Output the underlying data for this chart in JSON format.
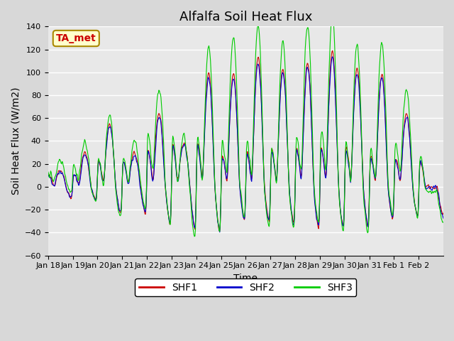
{
  "title": "Alfalfa Soil Heat Flux",
  "xlabel": "Time",
  "ylabel": "Soil Heat Flux (W/m2)",
  "ylim": [
    -60,
    140
  ],
  "yticks": [
    -60,
    -40,
    -20,
    0,
    20,
    40,
    60,
    80,
    100,
    120,
    140
  ],
  "xtick_labels": [
    "Jan 18",
    "Jan 19",
    "Jan 20",
    "Jan 21",
    "Jan 22",
    "Jan 23",
    "Jan 24",
    "Jan 25",
    "Jan 26",
    "Jan 27",
    "Jan 28",
    "Jan 29",
    "Jan 30",
    "Jan 31",
    "Feb 1",
    "Feb 2"
  ],
  "legend_labels": [
    "SHF1",
    "SHF2",
    "SHF3"
  ],
  "line_colors": [
    "#cc0000",
    "#0000cc",
    "#00cc00"
  ],
  "background_color": "#e8e8e8",
  "grid_color": "#ffffff",
  "annotation_text": "TA_met",
  "annotation_color": "#cc0000",
  "annotation_bg": "#ffffcc",
  "title_fontsize": 13,
  "axis_label_fontsize": 10,
  "tick_fontsize": 8,
  "legend_fontsize": 10,
  "day_amps": [
    15,
    30,
    55,
    30,
    65,
    40,
    100,
    100,
    115,
    105,
    110,
    120,
    105,
    100,
    65,
    0
  ],
  "night_amps": [
    -10,
    -12,
    -25,
    -25,
    -35,
    -40,
    -42,
    -30,
    -32,
    -35,
    -38,
    -38,
    -38,
    -30,
    -28,
    -25
  ]
}
